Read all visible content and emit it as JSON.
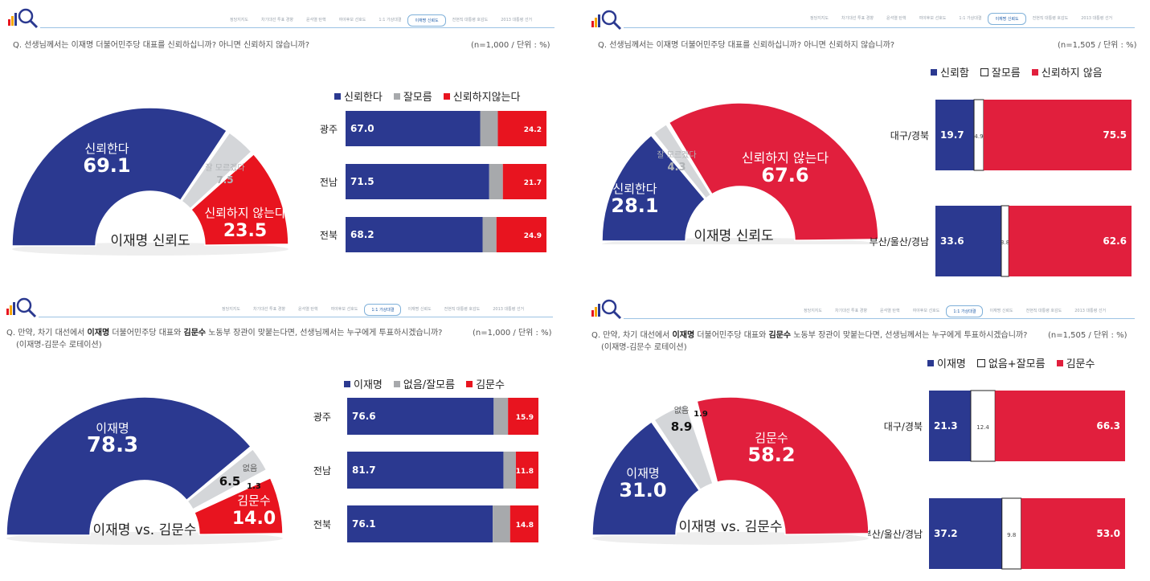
{
  "nav_tabs": [
    "정당지지도",
    "차기대선 투표 경향",
    "윤석열 탄핵",
    "여야후보 선호도",
    "1:1 가상대결",
    "이재명 신뢰도",
    "전현직 대통령 호감도",
    "2013 대통령 선거"
  ],
  "colors": {
    "blue": "#2b3990",
    "gray": "#a7a9ac",
    "red": "#e8141f",
    "red2": "#e11f3d",
    "light": "#d4d6d9"
  },
  "panels": [
    {
      "question": "Q. 선생님께서는 이재명 더불어민주당 대표를 신뢰하십니까? 아니면 신뢰하지 않습니까?",
      "meta": "(n=1,000 / 단위 : %)",
      "active_tab": "이재명 신뢰도",
      "center_label": "이재명 신뢰도",
      "legend": [
        {
          "label": "신뢰한다",
          "color": "#2b3990"
        },
        {
          "label": "잘모름",
          "color": "#a7a9ac"
        },
        {
          "label": "신뢰하지않는다",
          "color": "#e8141f"
        }
      ],
      "regions": [
        "광주",
        "전남",
        "전북"
      ]
    },
    {
      "question": "Q. 선생님께서는 이재명 더불어민주당 대표를 신뢰하십니까? 아니면 신뢰하지 않습니까?",
      "meta": "(n=1,505 / 단위 : %)",
      "active_tab": "이재명 신뢰도",
      "center_label": "이재명 신뢰도",
      "legend": [
        {
          "label": "신뢰함",
          "color": "#2b3990"
        },
        {
          "label": "잘모름",
          "color": "#ffffff"
        },
        {
          "label": "신뢰하지 않음",
          "color": "#e11f3d"
        }
      ],
      "regions": [
        "대구/경북",
        "부산/울산/경남"
      ]
    },
    {
      "question_pre": "Q. 만약, 차기 대선에서 ",
      "question_b1": "이재명",
      "question_mid": " 더불어민주당 대표와 ",
      "question_b2": "김문수",
      "question_post": " 노동부 장관이 맞붙는다면, 선생님께서는 누구에게 투표하시겠습니까?",
      "sub": "(이재명-김문수 로테이션)",
      "meta": "(n=1,000 / 단위 : %)",
      "active_tab": "1:1 가상대결",
      "center_label": "이재명 vs. 김문수",
      "legend": [
        {
          "label": "이재명",
          "color": "#2b3990"
        },
        {
          "label": "없음/잘모름",
          "color": "#a7a9ac"
        },
        {
          "label": "김문수",
          "color": "#e8141f"
        }
      ],
      "regions": [
        "광주",
        "전남",
        "전북"
      ]
    },
    {
      "question_pre": "Q. 만약, 차기 대선에서 ",
      "question_b1": "이재명",
      "question_mid": " 더불어민주당 대표와 ",
      "question_b2": "김문수",
      "question_post": " 노동부 장관이 맞붙는다면, 선생님께서는 누구에게 투표하시겠습니까?",
      "sub": "(이재명-김문수 로테이션)",
      "meta": "(n=1,505 / 단위 : %)",
      "active_tab": "1:1 가상대결",
      "center_label": "이재명 vs. 김문수",
      "legend": [
        {
          "label": "이재명",
          "color": "#2b3990"
        },
        {
          "label": "없음+잘모름",
          "color": "#ffffff"
        },
        {
          "label": "김문수",
          "color": "#e11f3d"
        }
      ],
      "regions": [
        "대구/경북",
        "부산/울산/경남"
      ]
    }
  ],
  "chart_data": [
    {
      "type": "pie",
      "subtype": "half-donut",
      "slices": [
        {
          "label": "신뢰한다",
          "value": 69.1,
          "color": "#2b3990"
        },
        {
          "label": "잘 모르겠다",
          "value": 7.5,
          "color": "#d4d6d9"
        },
        {
          "label": "신뢰하지 않는다",
          "value": 23.5,
          "color": "#e8141f"
        }
      ]
    },
    {
      "type": "bar",
      "orientation": "horizontal",
      "stacked": true,
      "categories": [
        "광주",
        "전남",
        "전북"
      ],
      "series": [
        {
          "name": "신뢰한다",
          "values": [
            67.0,
            71.5,
            68.2
          ]
        },
        {
          "name": "잘모름",
          "values": [
            8.8,
            6.8,
            6.9
          ]
        },
        {
          "name": "신뢰하지않는다",
          "values": [
            24.2,
            21.7,
            24.9
          ]
        }
      ]
    },
    {
      "type": "pie",
      "subtype": "half-donut",
      "slices": [
        {
          "label": "신뢰한다",
          "value": 28.1,
          "color": "#2b3990"
        },
        {
          "label": "잘 모르겠다",
          "value": 4.3,
          "color": "#d4d6d9"
        },
        {
          "label": "신뢰하지 않는다",
          "value": 67.6,
          "color": "#e11f3d"
        }
      ]
    },
    {
      "type": "bar",
      "orientation": "horizontal",
      "stacked": true,
      "categories": [
        "대구/경북",
        "부산/울산/경남"
      ],
      "series": [
        {
          "name": "신뢰함",
          "values": [
            19.7,
            33.6
          ]
        },
        {
          "name": "잘모름",
          "values": [
            4.9,
            3.8
          ]
        },
        {
          "name": "신뢰하지 않음",
          "values": [
            75.5,
            62.6
          ]
        }
      ]
    },
    {
      "type": "pie",
      "subtype": "half-donut",
      "slices": [
        {
          "label": "이재명",
          "value": 78.3,
          "color": "#2b3990"
        },
        {
          "label": "없음",
          "value": 6.5,
          "color": "#d4d6d9"
        },
        {
          "label": "",
          "value": 1.3,
          "color": "#ffffff"
        },
        {
          "label": "김문수",
          "value": 14.0,
          "color": "#e8141f"
        }
      ]
    },
    {
      "type": "bar",
      "orientation": "horizontal",
      "stacked": true,
      "categories": [
        "광주",
        "전남",
        "전북"
      ],
      "series": [
        {
          "name": "이재명",
          "values": [
            76.6,
            81.7,
            76.1
          ]
        },
        {
          "name": "없음/잘모름",
          "values": [
            7.5,
            6.5,
            9.1
          ]
        },
        {
          "name": "김문수",
          "values": [
            15.9,
            11.8,
            14.8
          ]
        }
      ]
    },
    {
      "type": "pie",
      "subtype": "half-donut",
      "slices": [
        {
          "label": "이재명",
          "value": 31.0,
          "color": "#2b3990"
        },
        {
          "label": "없음",
          "value": 8.9,
          "color": "#d4d6d9"
        },
        {
          "label": "",
          "value": 1.9,
          "color": "#ffffff"
        },
        {
          "label": "김문수",
          "value": 58.2,
          "color": "#e11f3d"
        }
      ]
    },
    {
      "type": "bar",
      "orientation": "horizontal",
      "stacked": true,
      "categories": [
        "대구/경북",
        "부산/울산/경남"
      ],
      "series": [
        {
          "name": "이재명",
          "values": [
            21.3,
            37.2
          ]
        },
        {
          "name": "없음+잘모름",
          "values": [
            12.4,
            9.8
          ]
        },
        {
          "name": "김문수",
          "values": [
            66.3,
            53.0
          ]
        }
      ]
    }
  ]
}
